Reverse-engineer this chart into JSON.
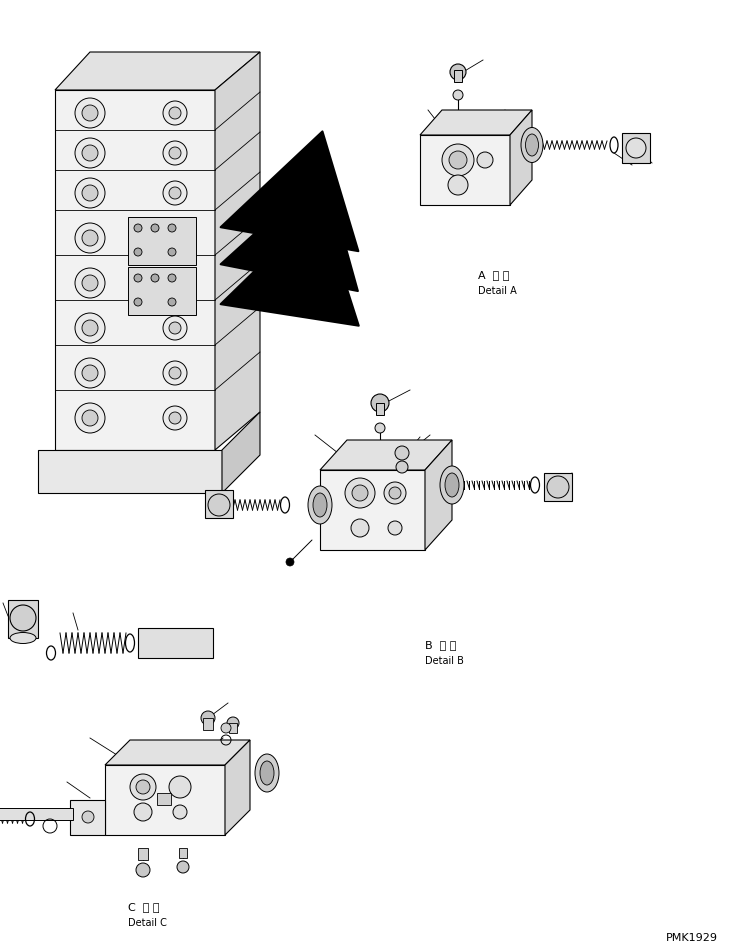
{
  "background_color": "#ffffff",
  "fig_width": 7.29,
  "fig_height": 9.5,
  "dpi": 100,
  "labels": {
    "A_detail_jp": "A  詳 細",
    "A_detail_en": "Detail A",
    "B_detail_jp": "B  詳 細",
    "B_detail_en": "Detail B",
    "C_detail_jp": "C  詳 細",
    "C_detail_en": "Detail C",
    "part_number": "PMK1929",
    "A": "A",
    "B": "B",
    "C": "C"
  },
  "text_color": "#000000",
  "line_color": "#000000",
  "line_width": 0.8
}
